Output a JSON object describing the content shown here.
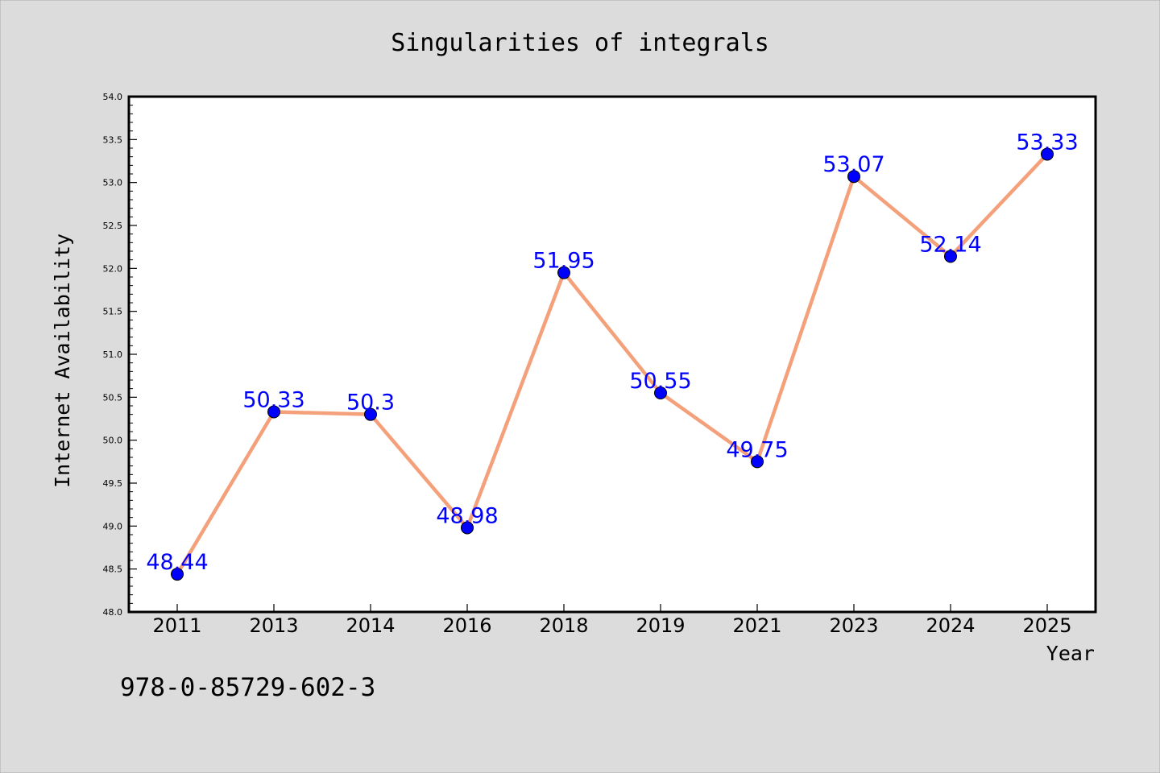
{
  "chart_data": {
    "type": "line",
    "title": "Singularities of integrals",
    "xlabel": "Year",
    "ylabel": "Internet Availability",
    "categories": [
      "2011",
      "2013",
      "2014",
      "2016",
      "2018",
      "2019",
      "2021",
      "2023",
      "2024",
      "2025"
    ],
    "values": [
      48.44,
      50.33,
      50.3,
      48.98,
      51.95,
      50.55,
      49.75,
      53.07,
      52.14,
      53.33
    ],
    "data_labels": [
      "48.44",
      "50.33",
      "50.3",
      "48.98",
      "51.95",
      "50.55",
      "49.75",
      "53.07",
      "52.14",
      "53.33"
    ],
    "ylim": [
      48.0,
      54.0
    ],
    "yticks": [
      "48.0",
      "48.5",
      "49.0",
      "49.5",
      "50.0",
      "50.5",
      "51.0",
      "51.5",
      "52.0",
      "52.5",
      "53.0",
      "53.5",
      "54.0"
    ],
    "grid": false,
    "line_color": "#f4a07a",
    "marker_color": "#0000ff",
    "label_color": "#0000ff",
    "background_color": "#dcdcdc"
  },
  "footer": {
    "isbn": "978-0-85729-602-3"
  }
}
